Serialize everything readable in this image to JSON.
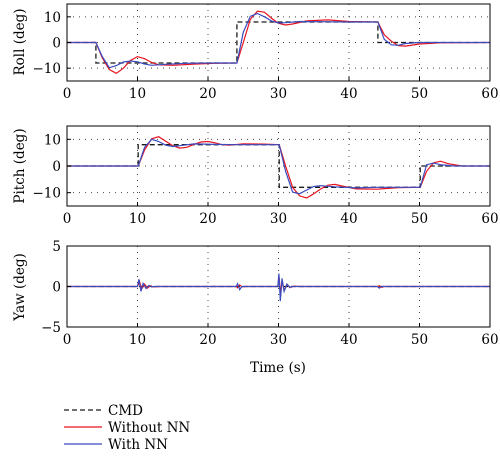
{
  "colors": {
    "cmd": "#1a1a1a",
    "without_nn": "#e8141e",
    "with_nn": "#3a4cc0",
    "grid": "#444444"
  },
  "legend": {
    "placement": "bottom-left",
    "entries": [
      {
        "key": "cmd",
        "label": "CMD",
        "style": "dashed"
      },
      {
        "key": "without_nn",
        "label": "Without NN",
        "style": "solid"
      },
      {
        "key": "with_nn",
        "label": "With NN",
        "style": "solid"
      }
    ]
  },
  "chart_data": [
    {
      "type": "line",
      "ylabel": "Roll (deg)",
      "xlabel": "",
      "xlim": [
        0,
        60
      ],
      "ylim": [
        -15,
        15
      ],
      "xticks": [
        0,
        10,
        20,
        30,
        40,
        50,
        60
      ],
      "yticks": [
        -10,
        0,
        10
      ],
      "grid": true,
      "series": [
        {
          "key": "cmd",
          "name": "CMD",
          "x": [
            0,
            4.1,
            4.1,
            24.1,
            24.1,
            44.1,
            44.1,
            60
          ],
          "y": [
            0,
            0,
            -8,
            -8,
            8,
            8,
            0,
            0
          ]
        },
        {
          "key": "without_nn",
          "name": "Without NN",
          "x": [
            0,
            4.1,
            5,
            6,
            7,
            8,
            9,
            10,
            11,
            12,
            13,
            15,
            18,
            21,
            24.1,
            25,
            26,
            27,
            28,
            29,
            30,
            31,
            32,
            34,
            37,
            40,
            44.1,
            45,
            46,
            47,
            48,
            50,
            53,
            60
          ],
          "y": [
            0,
            0,
            -6,
            -10.5,
            -12,
            -10,
            -7,
            -5.5,
            -6.3,
            -7.8,
            -8.7,
            -8.9,
            -8.4,
            -8.1,
            -8,
            0,
            9,
            12.2,
            11.8,
            9.5,
            7.5,
            6.8,
            7.2,
            8.4,
            8.8,
            8.2,
            8,
            3,
            0.5,
            -1.2,
            -1.4,
            -0.6,
            -0.1,
            0
          ]
        },
        {
          "key": "with_nn",
          "name": "With NN",
          "x": [
            0,
            4.1,
            5,
            6,
            7,
            8,
            9,
            10,
            11,
            12,
            14,
            17,
            20,
            24.1,
            25,
            26,
            27,
            28,
            29,
            30,
            31,
            33,
            36,
            40,
            44.1,
            45,
            46,
            47,
            48,
            50,
            60
          ],
          "y": [
            0,
            0,
            -5.5,
            -9.8,
            -9,
            -7.6,
            -7.2,
            -7.5,
            -8.4,
            -8.9,
            -8.5,
            -8.1,
            -8,
            -8,
            4,
            10.2,
            11.3,
            10,
            8.4,
            7.6,
            7.7,
            8.2,
            8.1,
            8,
            8,
            1.2,
            -0.9,
            -1.1,
            -0.4,
            0,
            0
          ]
        }
      ]
    },
    {
      "type": "line",
      "ylabel": "Pitch (deg)",
      "xlabel": "",
      "xlim": [
        0,
        60
      ],
      "ylim": [
        -15,
        15
      ],
      "xticks": [
        0,
        10,
        20,
        30,
        40,
        50,
        60
      ],
      "yticks": [
        -10,
        0,
        10
      ],
      "grid": true,
      "series": [
        {
          "key": "cmd",
          "name": "CMD",
          "x": [
            0,
            10.1,
            10.1,
            30.1,
            30.1,
            50.1,
            50.1,
            60
          ],
          "y": [
            0,
            0,
            8,
            8,
            -8,
            -8,
            0,
            0
          ]
        },
        {
          "key": "without_nn",
          "name": "Without NN",
          "x": [
            0,
            10.1,
            11,
            12,
            13,
            14,
            15,
            16,
            17,
            18,
            19,
            20,
            21,
            22,
            23,
            25,
            28,
            30.1,
            31,
            32,
            33,
            34,
            35,
            36,
            37,
            38,
            39,
            41,
            44,
            47,
            50.1,
            51,
            52,
            53,
            54,
            56,
            60
          ],
          "y": [
            0,
            0,
            6,
            10.2,
            11,
            9.3,
            7.6,
            6.7,
            7,
            8.1,
            9,
            9.2,
            8.7,
            8,
            7.8,
            8.3,
            8.2,
            8,
            0,
            -8,
            -11.2,
            -12,
            -10.4,
            -8.6,
            -7.2,
            -6.9,
            -7.5,
            -8.6,
            -8.7,
            -8.1,
            -8,
            -2,
            1.2,
            1.8,
            0.9,
            0,
            0
          ]
        },
        {
          "key": "with_nn",
          "name": "With NN",
          "x": [
            0,
            10.1,
            11,
            12,
            13,
            14,
            15,
            16,
            18,
            21,
            24,
            27,
            30.1,
            31,
            32,
            33,
            34,
            35,
            36,
            38,
            41,
            44,
            47,
            50.1,
            51,
            52,
            53,
            55,
            60
          ],
          "y": [
            0,
            0,
            7,
            10,
            9.2,
            7.8,
            7.3,
            7.6,
            8.3,
            8.1,
            8,
            8,
            8,
            -2,
            -9.8,
            -10.4,
            -9,
            -7.7,
            -7.4,
            -7.8,
            -8.2,
            -8,
            -8,
            -8,
            0.5,
            1.1,
            0.5,
            0,
            0
          ]
        }
      ]
    },
    {
      "type": "line",
      "ylabel": "Yaw (deg)",
      "xlabel": "Time (s)",
      "xlim": [
        0,
        60
      ],
      "ylim": [
        -5,
        5
      ],
      "xticks": [
        0,
        10,
        20,
        30,
        40,
        50,
        60
      ],
      "yticks": [
        -5,
        0,
        5
      ],
      "grid": true,
      "series": [
        {
          "key": "cmd",
          "name": "CMD",
          "x": [
            0,
            60
          ],
          "y": [
            0,
            0
          ]
        },
        {
          "key": "without_nn",
          "name": "Without NN",
          "x": [
            0,
            10,
            10.3,
            10.6,
            11,
            11.4,
            11.8,
            12.3,
            13,
            24,
            24.2,
            24.5,
            24.8,
            25.2,
            29.9,
            30.1,
            30.3,
            30.5,
            30.8,
            31.2,
            31.6,
            32.2,
            33,
            44,
            44.3,
            44.6,
            45,
            60
          ],
          "y": [
            0,
            0,
            0.6,
            -0.3,
            0.3,
            -0.2,
            0.1,
            -0.05,
            0,
            0,
            -0.15,
            0.2,
            -0.05,
            0,
            0,
            1.1,
            -1.2,
            0.7,
            -0.5,
            0.3,
            -0.15,
            0.05,
            0,
            0,
            0.1,
            -0.1,
            0,
            0
          ]
        },
        {
          "key": "with_nn",
          "name": "With NN",
          "x": [
            0,
            10,
            10.2,
            10.5,
            10.8,
            11.2,
            11.6,
            12,
            12.5,
            24,
            24.2,
            24.5,
            24.8,
            29.9,
            30.05,
            30.25,
            30.5,
            30.8,
            31.2,
            31.6,
            32,
            44,
            44.3,
            44.6,
            60
          ],
          "y": [
            0,
            0,
            0.9,
            -0.6,
            0.4,
            -0.25,
            0.12,
            -0.05,
            0,
            0,
            0.35,
            -0.4,
            0,
            0,
            1.6,
            -1.8,
            1.0,
            -0.6,
            0.3,
            -0.1,
            0,
            0,
            -0.2,
            0,
            0
          ]
        }
      ]
    }
  ]
}
